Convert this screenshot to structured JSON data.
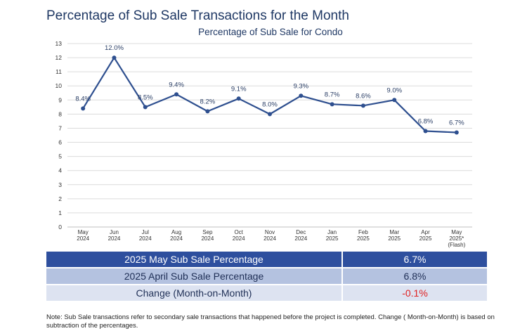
{
  "page": {
    "title": "Percentage of Sub Sale Transactions for the Month",
    "note": "Note: Sub Sale transactions refer to secondary sale transactions that happened before the project is completed. Change ( Month-on-Month) is based on subtraction of the percentages."
  },
  "colors": {
    "line": "#2e4f8f",
    "grid": "#dcdcdc",
    "header_row": "#2e4f9e",
    "negative": "#e02020"
  },
  "chart_data": {
    "type": "line",
    "title": "Percentage of Sub Sale for Condo",
    "xlabel": "",
    "ylabel": "",
    "ylim": [
      0,
      13
    ],
    "yticks": [
      "0",
      "1",
      "2",
      "3",
      "4",
      "5",
      "6",
      "7",
      "8",
      "9",
      "10",
      "11",
      "12",
      "13"
    ],
    "grid": true,
    "categories": [
      [
        "May",
        "2024"
      ],
      [
        "Jun",
        "2024"
      ],
      [
        "Jul",
        "2024"
      ],
      [
        "Aug",
        "2024"
      ],
      [
        "Sep",
        "2024"
      ],
      [
        "Oct",
        "2024"
      ],
      [
        "Nov",
        "2024"
      ],
      [
        "Dec",
        "2024"
      ],
      [
        "Jan",
        "2025"
      ],
      [
        "Feb",
        "2025"
      ],
      [
        "Mar",
        "2025"
      ],
      [
        "Apr",
        "2025"
      ],
      [
        "May",
        "2025*",
        "(Flash)"
      ]
    ],
    "series": [
      {
        "name": "Sub Sale %",
        "values": [
          8.4,
          12.0,
          8.5,
          9.4,
          8.2,
          9.1,
          8.0,
          9.3,
          8.7,
          8.6,
          9.0,
          6.8,
          6.7
        ],
        "labels": [
          "8.4%",
          "12.0%",
          "8.5%",
          "9.4%",
          "8.2%",
          "9.1%",
          "8.0%",
          "9.3%",
          "8.7%",
          "8.6%",
          "9.0%",
          "6.8%",
          "6.7%"
        ]
      }
    ]
  },
  "summary": {
    "rows": [
      {
        "label": "2025 May Sub Sale Percentage",
        "value": "6.7%"
      },
      {
        "label": "2025 April Sub Sale Percentage",
        "value": "6.8%"
      },
      {
        "label": "Change (Month-on-Month)",
        "value": "-0.1%"
      }
    ]
  }
}
